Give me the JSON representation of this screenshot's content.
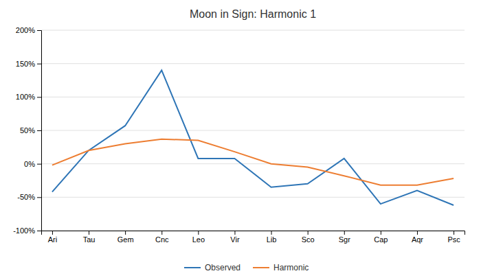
{
  "chart_data": {
    "type": "line",
    "title": "Moon in Sign: Harmonic 1",
    "categories": [
      "Ari",
      "Tau",
      "Gem",
      "Cnc",
      "Leo",
      "Vir",
      "Lib",
      "Sco",
      "Sgr",
      "Cap",
      "Aqr",
      "Psc"
    ],
    "series": [
      {
        "name": "Observed",
        "color": "#2E75B6",
        "values": [
          -42,
          20,
          57,
          140,
          8,
          8,
          -35,
          -30,
          8,
          -60,
          -40,
          -62
        ]
      },
      {
        "name": "Harmonic",
        "color": "#ED7D31",
        "values": [
          -2,
          20,
          30,
          37,
          35,
          18,
          0,
          -5,
          -18,
          -32,
          -32,
          -22
        ]
      }
    ],
    "ylim": [
      -100,
      200
    ],
    "yticks": [
      {
        "value": -100,
        "label": "-100%"
      },
      {
        "value": -50,
        "label": "-50%"
      },
      {
        "value": 0,
        "label": "0%"
      },
      {
        "value": 50,
        "label": "50%"
      },
      {
        "value": 100,
        "label": "100%"
      },
      {
        "value": 150,
        "label": "150%"
      },
      {
        "value": 200,
        "label": "200%"
      }
    ],
    "grid": true,
    "legend": "bottom"
  }
}
